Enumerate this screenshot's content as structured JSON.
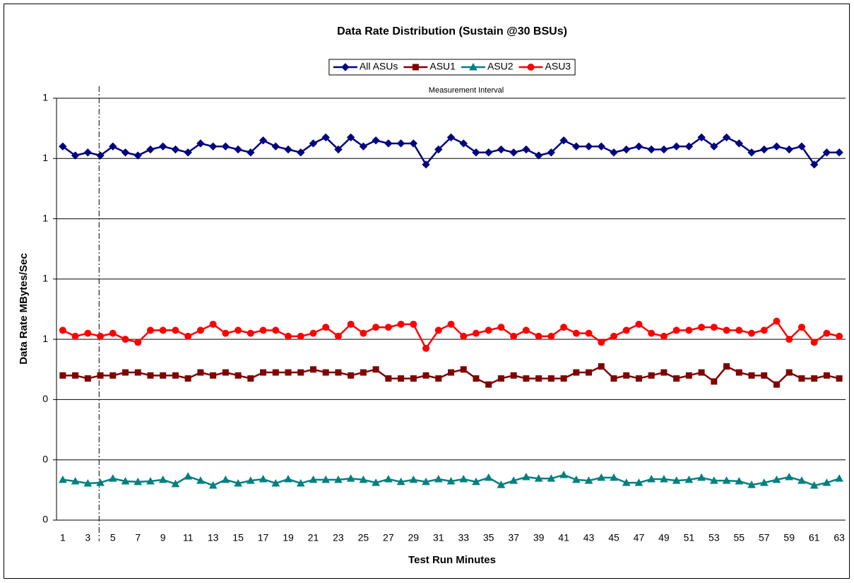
{
  "chart_data": {
    "type": "line",
    "title": "Data Rate Distribution (Sustain @30 BSUs)",
    "x_label": "Test Run Minutes",
    "y_label": "Data Rate MBytes/Sec",
    "annotation": "Measurement Interval",
    "categories": [
      1,
      null,
      3,
      null,
      5,
      null,
      7,
      null,
      9,
      null,
      11,
      null,
      13,
      null,
      15,
      null,
      17,
      null,
      19,
      null,
      21,
      null,
      23,
      null,
      25,
      null,
      27,
      null,
      29,
      null,
      31,
      null,
      33,
      null,
      35,
      null,
      37,
      null,
      39,
      null,
      41,
      null,
      43,
      null,
      45,
      null,
      47,
      null,
      49,
      null,
      51,
      null,
      53,
      null,
      55,
      null,
      57,
      null,
      59,
      null,
      61,
      null,
      63
    ],
    "ylim": [
      0,
      1.4
    ],
    "yticks": [
      0,
      {
        "value": 0.2,
        "label": "0"
      },
      {
        "value": 0.4,
        "label": "0"
      },
      {
        "value": 0.6,
        "label": "1"
      },
      {
        "value": 0.8,
        "label": "1"
      },
      1,
      {
        "value": 1.2,
        "label": "1"
      },
      {
        "value": 1.4,
        "label": "1"
      }
    ],
    "grid": true,
    "legend": "top",
    "series": [
      {
        "name": "All ASUs",
        "color": "#000080",
        "marker": "diamond",
        "values": [
          1.24,
          1.21,
          1.22,
          1.21,
          1.24,
          1.22,
          1.21,
          1.23,
          1.24,
          1.23,
          1.22,
          1.25,
          1.24,
          1.24,
          1.23,
          1.22,
          1.26,
          1.24,
          1.23,
          1.22,
          1.25,
          1.27,
          1.23,
          1.27,
          1.24,
          1.26,
          1.25,
          1.25,
          1.25,
          1.18,
          1.23,
          1.27,
          1.25,
          1.22,
          1.22,
          1.23,
          1.22,
          1.23,
          1.21,
          1.22,
          1.26,
          1.24,
          1.24,
          1.24,
          1.22,
          1.23,
          1.24,
          1.23,
          1.23,
          1.24,
          1.24,
          1.27,
          1.24,
          1.27,
          1.25,
          1.22,
          1.23,
          1.24,
          1.23,
          1.24,
          1.18,
          1.22,
          1.22
        ]
      },
      {
        "name": "ASU1",
        "color": "#800000",
        "marker": "square",
        "values": [
          0.48,
          0.48,
          0.47,
          0.48,
          0.48,
          0.49,
          0.49,
          0.48,
          0.48,
          0.48,
          0.47,
          0.49,
          0.48,
          0.49,
          0.48,
          0.47,
          0.49,
          0.49,
          0.49,
          0.49,
          0.5,
          0.49,
          0.49,
          0.48,
          0.49,
          0.5,
          0.47,
          0.47,
          0.47,
          0.48,
          0.47,
          0.49,
          0.5,
          0.47,
          0.45,
          0.47,
          0.48,
          0.47,
          0.47,
          0.47,
          0.47,
          0.49,
          0.49,
          0.51,
          0.47,
          0.48,
          0.47,
          0.48,
          0.49,
          0.47,
          0.48,
          0.49,
          0.46,
          0.51,
          0.49,
          0.48,
          0.48,
          0.45,
          0.49,
          0.47,
          0.47,
          0.48,
          0.47
        ]
      },
      {
        "name": "ASU2",
        "color": "#008080",
        "marker": "triangle",
        "values": [
          0.134,
          0.129,
          0.122,
          0.124,
          0.138,
          0.129,
          0.127,
          0.129,
          0.134,
          0.12,
          0.145,
          0.131,
          0.115,
          0.134,
          0.122,
          0.131,
          0.136,
          0.122,
          0.136,
          0.122,
          0.134,
          0.134,
          0.134,
          0.138,
          0.134,
          0.124,
          0.136,
          0.127,
          0.134,
          0.127,
          0.136,
          0.129,
          0.136,
          0.127,
          0.141,
          0.117,
          0.131,
          0.143,
          0.138,
          0.138,
          0.15,
          0.134,
          0.131,
          0.141,
          0.141,
          0.124,
          0.124,
          0.136,
          0.136,
          0.131,
          0.134,
          0.141,
          0.131,
          0.131,
          0.129,
          0.117,
          0.124,
          0.134,
          0.143,
          0.131,
          0.115,
          0.124,
          0.138
        ]
      },
      {
        "name": "ASU3",
        "color": "#ff0000",
        "marker": "circle",
        "values": [
          0.63,
          0.61,
          0.62,
          0.61,
          0.62,
          0.6,
          0.59,
          0.63,
          0.63,
          0.63,
          0.61,
          0.63,
          0.65,
          0.62,
          0.63,
          0.62,
          0.63,
          0.63,
          0.61,
          0.61,
          0.62,
          0.64,
          0.61,
          0.65,
          0.62,
          0.64,
          0.64,
          0.65,
          0.65,
          0.57,
          0.63,
          0.65,
          0.61,
          0.62,
          0.63,
          0.64,
          0.61,
          0.63,
          0.61,
          0.61,
          0.64,
          0.62,
          0.62,
          0.59,
          0.61,
          0.63,
          0.65,
          0.62,
          0.61,
          0.63,
          0.63,
          0.64,
          0.64,
          0.63,
          0.63,
          0.62,
          0.63,
          0.66,
          0.6,
          0.64,
          0.59,
          0.62,
          0.61
        ]
      }
    ]
  }
}
